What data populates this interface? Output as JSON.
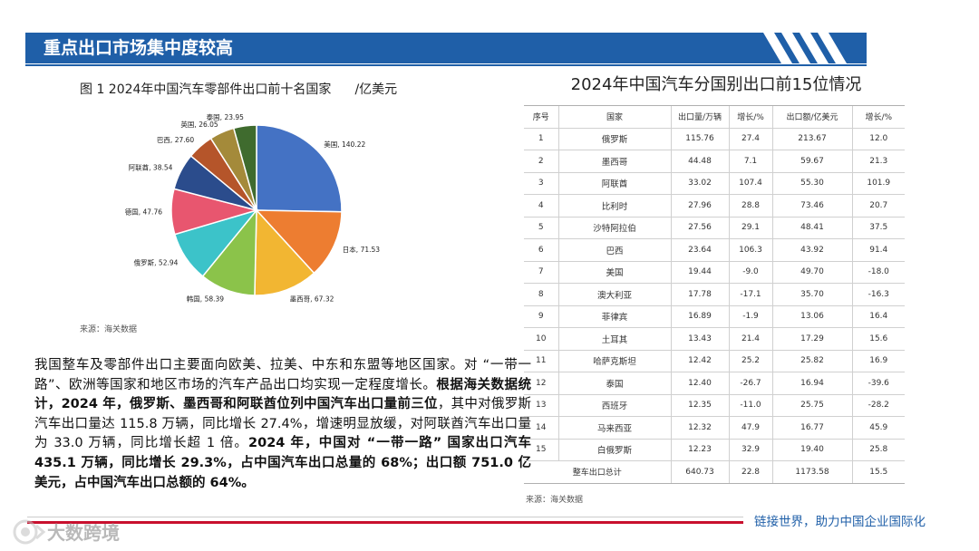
{
  "header": {
    "title": "重点出口市场集中度较高"
  },
  "pie": {
    "title": "图 1  2024年中国汽车零部件出口前十名国家",
    "unit": "/亿美元",
    "source": "来源：海关数据"
  },
  "chart_data": {
    "type": "pie",
    "title": "2024年中国汽车零部件出口前十名国家",
    "unit": "亿美元",
    "slices": [
      {
        "name": "美国",
        "value": 140.22,
        "color": "#4472c4"
      },
      {
        "name": "日本",
        "value": 71.53,
        "color": "#ed7d31"
      },
      {
        "name": "墨西哥",
        "value": 67.32,
        "color": "#f2b632"
      },
      {
        "name": "韩国",
        "value": 58.39,
        "color": "#8bc34a"
      },
      {
        "name": "俄罗斯",
        "value": 52.94,
        "color": "#3cc3c9"
      },
      {
        "name": "德国",
        "value": 47.76,
        "color": "#e8566f"
      },
      {
        "name": "阿联酋",
        "value": 38.54,
        "color": "#2b4c8c"
      },
      {
        "name": "巴西",
        "value": 27.6,
        "color": "#b5552a"
      },
      {
        "name": "英国",
        "value": 26.05,
        "color": "#a48a3a"
      },
      {
        "name": "泰国",
        "value": 23.95,
        "color": "#3f6b2e"
      }
    ]
  },
  "paragraph": {
    "p1": "我国整车及零部件出口主要面向欧美、拉美、中东和东盟等地区国家。对 “一带一路”、欧洲等国家和地区市场的汽车产品出口均实现一定程度增长。",
    "b1": "根据海关数据统计，2024 年，俄罗斯、墨西哥和阿联酋位列中国汽车出口量前三位",
    "p2": "，其中对俄罗斯汽车出口量达 115.8 万辆，同比增长 27.4%，增速明显放缓，对阿联酋汽车出口量为 33.0 万辆，同比增长超 1 倍。",
    "b2": "2024 年，中国对 “一带一路” 国家出口汽车 435.1 万辆，同比增长 29.3%，占中国汽车出口总量的 68%；出口额 751.0 亿美元，占中国汽车出口总额的 64%。"
  },
  "table": {
    "title": "2024年中国汽车分国别出口前15位情况",
    "headers": [
      "序号",
      "国家",
      "出口量/万辆",
      "增长/%",
      "出口额/亿美元",
      "增长/%"
    ],
    "rows": [
      [
        "1",
        "俄罗斯",
        "115.76",
        "27.4",
        "213.67",
        "12.0"
      ],
      [
        "2",
        "墨西哥",
        "44.48",
        "7.1",
        "59.67",
        "21.3"
      ],
      [
        "3",
        "阿联酋",
        "33.02",
        "107.4",
        "55.30",
        "101.9"
      ],
      [
        "4",
        "比利时",
        "27.96",
        "28.8",
        "73.46",
        "20.7"
      ],
      [
        "5",
        "沙特阿拉伯",
        "27.56",
        "29.1",
        "48.41",
        "37.5"
      ],
      [
        "6",
        "巴西",
        "23.64",
        "106.3",
        "43.92",
        "91.4"
      ],
      [
        "7",
        "美国",
        "19.44",
        "-9.0",
        "49.70",
        "-18.0"
      ],
      [
        "8",
        "澳大利亚",
        "17.78",
        "-17.1",
        "35.70",
        "-16.3"
      ],
      [
        "9",
        "菲律宾",
        "16.89",
        "-1.9",
        "13.06",
        "16.4"
      ],
      [
        "10",
        "土耳其",
        "13.43",
        "21.4",
        "17.29",
        "15.6"
      ],
      [
        "11",
        "哈萨克斯坦",
        "12.42",
        "25.2",
        "25.82",
        "16.9"
      ],
      [
        "12",
        "泰国",
        "12.40",
        "-26.7",
        "16.94",
        "-39.6"
      ],
      [
        "13",
        "西班牙",
        "12.35",
        "-11.0",
        "25.75",
        "-28.2"
      ],
      [
        "14",
        "马来西亚",
        "12.32",
        "47.9",
        "16.77",
        "45.9"
      ],
      [
        "15",
        "白俄罗斯",
        "12.23",
        "32.9",
        "19.40",
        "25.8"
      ]
    ],
    "total": {
      "label": "整车出口总计",
      "volume": "640.73",
      "vol_growth": "22.8",
      "value": "1173.58",
      "val_growth": "15.5"
    },
    "source": "来源：海关数据"
  },
  "footer": {
    "slogan": "链接世界，助力中国企业国际化",
    "logo_text": "大数跨境"
  }
}
